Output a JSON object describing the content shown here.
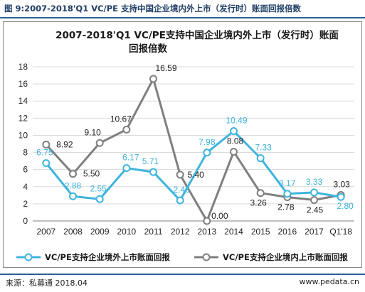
{
  "caption": "图 9:2007-2018'Q1 VC/PE 支持中国企业境内外上市（发行时）账面回报倍数",
  "footer": {
    "source": "来源：私募通 2018.04",
    "website": "www.pedata.cn"
  },
  "chart_data": {
    "type": "line",
    "title_lines": [
      "2007-2018'Q1 VC/PE支持中国企业境内外上市（发行时）账面",
      "回报倍数"
    ],
    "categories": [
      "2007",
      "2008",
      "2009",
      "2010",
      "2011",
      "2012",
      "2013",
      "2014",
      "2015",
      "2016",
      "2017",
      "Q1'18"
    ],
    "ylim": [
      0,
      18
    ],
    "yticks": [
      0,
      2,
      4,
      6,
      8,
      10,
      12,
      14,
      16,
      18
    ],
    "grid": "horizontal",
    "legend_position": "bottom",
    "series": [
      {
        "name": "VC/PE支持企业境外上市账面回报",
        "color": "#3eb4dc",
        "values": [
          6.75,
          2.88,
          2.55,
          6.17,
          5.71,
          2.4,
          7.98,
          10.49,
          7.33,
          3.17,
          3.33,
          2.8
        ],
        "labels": [
          "6.75",
          "2.88",
          "2.55",
          "6.17",
          "5.71",
          "2.40",
          "7.98",
          "10.49",
          "7.33",
          "3.17",
          "3.33",
          "2.80"
        ]
      },
      {
        "name": "VC/PE支持企业境内上市账面回报",
        "color": "#7f7f7f",
        "values": [
          8.92,
          5.5,
          9.1,
          10.67,
          16.59,
          5.4,
          0.0,
          8.08,
          3.26,
          2.78,
          2.45,
          3.03
        ],
        "labels": [
          "8.92",
          "5.50",
          "9.10",
          "10.67",
          "16.59",
          "5.40",
          "0.00",
          "8.08",
          "3.26",
          "2.78",
          "2.45",
          "3.03"
        ]
      }
    ]
  }
}
